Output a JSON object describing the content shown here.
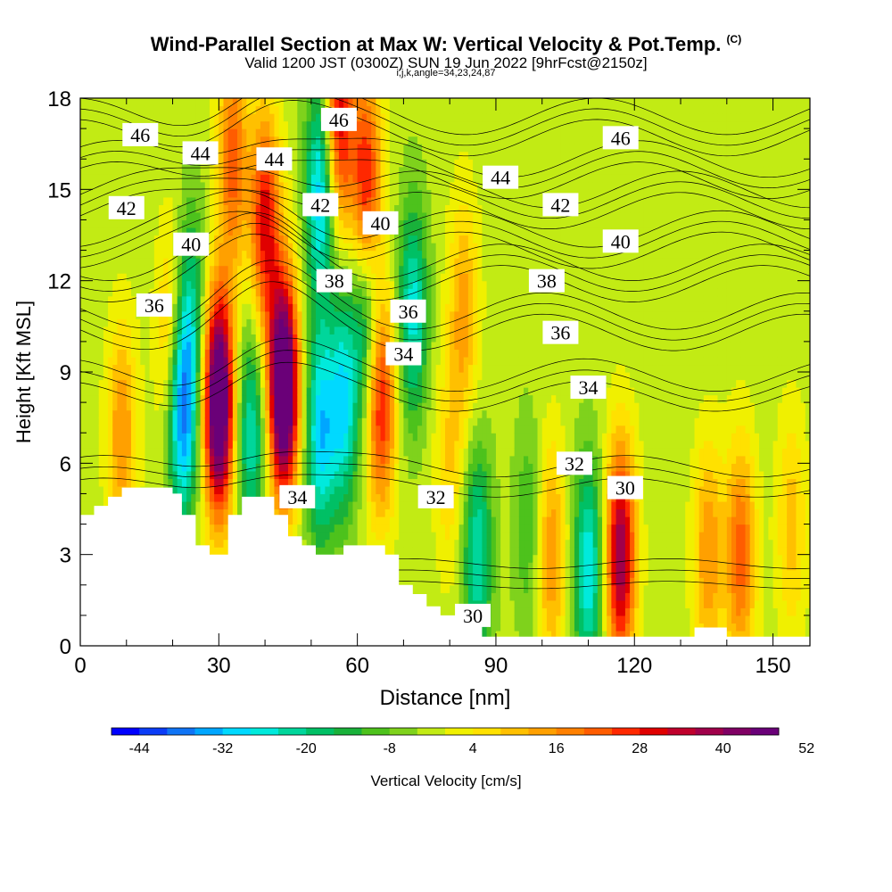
{
  "chart_data": {
    "type": "heatmap",
    "title": "Wind-Parallel Section at Max W: Vertical Velocity & Pot.Temp.",
    "title_mark": "(C)",
    "subtitle": "Valid 1200 JST (0300Z) SUN 19 Jun 2022 [9hrFcst@2150z]",
    "subtitle2": "i,j,k,angle=34,23,24,87",
    "xlabel": "Distance [nm]",
    "ylabel": "Height [Kft MSL]",
    "xlim": [
      0,
      158
    ],
    "ylim": [
      0,
      18
    ],
    "x_ticks": [
      "0",
      "30",
      "60",
      "90",
      "120",
      "150"
    ],
    "y_ticks": [
      "0",
      "3",
      "6",
      "9",
      "12",
      "15",
      "18"
    ],
    "colorbar": {
      "label": "Vertical Velocity [cm/s]",
      "tick_labels": [
        "-44",
        "-32",
        "-20",
        "-8",
        "4",
        "16",
        "28",
        "40",
        "52"
      ],
      "colors": [
        "#0000ff",
        "#0b3cf7",
        "#0f74f5",
        "#00a6ff",
        "#00d9ff",
        "#00eadc",
        "#00d69b",
        "#00c065",
        "#19b13a",
        "#4dc21c",
        "#7fd21c",
        "#c2eb14",
        "#f0f000",
        "#ffe100",
        "#ffc000",
        "#ffa000",
        "#ff8000",
        "#ff5c00",
        "#ff2800",
        "#e00000",
        "#c0002c",
        "#a0004a",
        "#800064",
        "#6a0078"
      ]
    },
    "background_value": -2,
    "updrafts": [
      {
        "x": 30,
        "y": 8.0,
        "w": 62
      },
      {
        "x": 44,
        "y": 8.5,
        "w": 64
      },
      {
        "x": 20,
        "y": 10,
        "w": 20
      },
      {
        "x": 9,
        "y": 7,
        "w": 18
      },
      {
        "x": 40,
        "y": 14,
        "w": 32
      },
      {
        "x": 33,
        "y": 16,
        "w": 24
      },
      {
        "x": 65,
        "y": 8,
        "w": 32
      },
      {
        "x": 62,
        "y": 15,
        "w": 34
      },
      {
        "x": 56,
        "y": 17.3,
        "w": 34
      },
      {
        "x": 83,
        "y": 11,
        "w": 16
      },
      {
        "x": 117,
        "y": 3,
        "w": 42
      },
      {
        "x": 102,
        "y": 3,
        "w": 18
      },
      {
        "x": 136,
        "y": 3,
        "w": 18
      },
      {
        "x": 143,
        "y": 3,
        "w": 24
      },
      {
        "x": 154,
        "y": 4,
        "w": 12
      },
      {
        "x": 80,
        "y": 6,
        "w": 10
      }
    ],
    "downdrafts": [
      {
        "x": 22,
        "y": 8,
        "w": -42
      },
      {
        "x": 37,
        "y": 7,
        "w": -22
      },
      {
        "x": 52,
        "y": 7,
        "w": -28
      },
      {
        "x": 57,
        "y": 8,
        "w": -26
      },
      {
        "x": 52,
        "y": 15,
        "w": -30
      },
      {
        "x": 72,
        "y": 11,
        "w": -24
      },
      {
        "x": 62,
        "y": 11,
        "w": -22
      },
      {
        "x": 86,
        "y": 3,
        "w": -22
      },
      {
        "x": 110,
        "y": 2.5,
        "w": -26
      },
      {
        "x": 24,
        "y": 11.5,
        "w": -14
      },
      {
        "x": 97,
        "y": 4,
        "w": -10
      }
    ],
    "isentropes": [
      {
        "label": "30",
        "base": 2.0,
        "labels": [
          [
            85,
            1.0
          ],
          [
            118,
            5.2
          ]
        ]
      },
      {
        "label": "32",
        "base": 5.2,
        "labels": [
          [
            77,
            4.9
          ],
          [
            107,
            6.0
          ]
        ]
      },
      {
        "label": "34",
        "base": 8.2,
        "labels": [
          [
            47,
            4.9
          ],
          [
            70,
            9.6
          ],
          [
            110,
            8.5
          ]
        ]
      },
      {
        "label": "36",
        "base": 10.3,
        "labels": [
          [
            16,
            11.2
          ],
          [
            71,
            11.0
          ],
          [
            104,
            10.3
          ]
        ]
      },
      {
        "label": "38",
        "base": 11.9,
        "labels": [
          [
            55,
            12.0
          ],
          [
            101,
            12.0
          ]
        ]
      },
      {
        "label": "40",
        "base": 13.0,
        "labels": [
          [
            24,
            13.2
          ],
          [
            65,
            13.9
          ],
          [
            117,
            13.3
          ]
        ]
      },
      {
        "label": "42",
        "base": 14.3,
        "labels": [
          [
            10,
            14.4
          ],
          [
            52,
            14.5
          ],
          [
            104,
            14.5
          ]
        ]
      },
      {
        "label": "44",
        "base": 15.3,
        "labels": [
          [
            26,
            16.2
          ],
          [
            42,
            16.0
          ],
          [
            91,
            15.4
          ]
        ]
      },
      {
        "label": "46",
        "base": 16.7,
        "labels": [
          [
            13,
            16.8
          ],
          [
            56,
            17.3
          ],
          [
            117,
            16.7
          ]
        ]
      }
    ],
    "terrain": [
      [
        0,
        4.3
      ],
      [
        3,
        4.3
      ],
      [
        3,
        4.6
      ],
      [
        6,
        4.6
      ],
      [
        6,
        4.9
      ],
      [
        9,
        4.9
      ],
      [
        9,
        5.2
      ],
      [
        20,
        5.2
      ],
      [
        20,
        5.0
      ],
      [
        22,
        5.0
      ],
      [
        22,
        4.3
      ],
      [
        25,
        4.3
      ],
      [
        25,
        3.3
      ],
      [
        28,
        3.3
      ],
      [
        28,
        3.0
      ],
      [
        32,
        3.0
      ],
      [
        32,
        4.3
      ],
      [
        35,
        4.3
      ],
      [
        35,
        4.9
      ],
      [
        42,
        4.9
      ],
      [
        42,
        4.3
      ],
      [
        45,
        4.3
      ],
      [
        45,
        3.6
      ],
      [
        48,
        3.6
      ],
      [
        48,
        3.3
      ],
      [
        51,
        3.3
      ],
      [
        51,
        3.0
      ],
      [
        57,
        3.0
      ],
      [
        57,
        3.3
      ],
      [
        66,
        3.3
      ],
      [
        66,
        3.0
      ],
      [
        69,
        3.0
      ],
      [
        69,
        2.0
      ],
      [
        72,
        2.0
      ],
      [
        72,
        1.7
      ],
      [
        75,
        1.7
      ],
      [
        75,
        1.3
      ],
      [
        78,
        1.3
      ],
      [
        78,
        1.0
      ],
      [
        84,
        1.0
      ],
      [
        84,
        0.7
      ],
      [
        87,
        0.7
      ],
      [
        87,
        0.3
      ],
      [
        133,
        0.3
      ],
      [
        133,
        0.6
      ],
      [
        140,
        0.6
      ],
      [
        140,
        0.3
      ],
      [
        158,
        0.3
      ],
      [
        158,
        0
      ],
      [
        0,
        0
      ]
    ]
  }
}
